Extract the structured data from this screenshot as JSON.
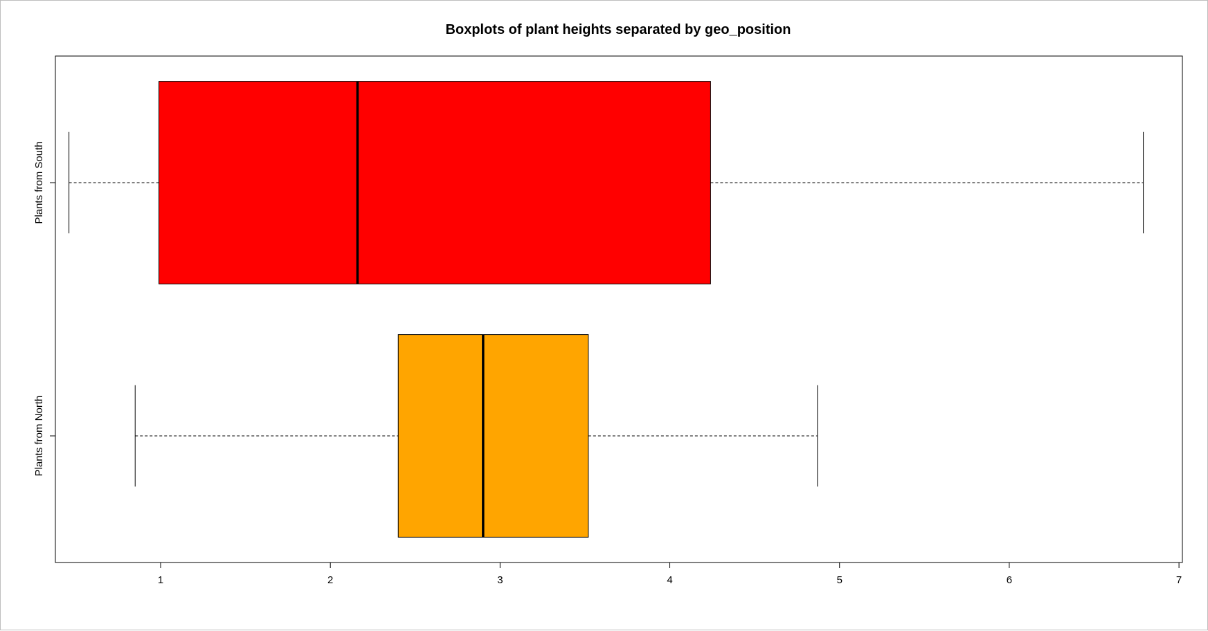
{
  "chart_data": {
    "type": "boxplot",
    "orientation": "horizontal",
    "title": "Boxplots of plant heights separated by geo_position",
    "xlabel": "",
    "ylabel": "",
    "xlim": [
      0.38,
      7.02
    ],
    "x_ticks": [
      1,
      2,
      3,
      4,
      5,
      6,
      7
    ],
    "x_tick_labels": [
      "1",
      "2",
      "3",
      "4",
      "5",
      "6",
      "7"
    ],
    "grid": false,
    "series": [
      {
        "name": "Plants from North",
        "color": "#FFA500",
        "whisker_low": 0.85,
        "q1": 2.4,
        "median": 2.9,
        "q3": 3.52,
        "whisker_high": 4.87
      },
      {
        "name": "Plants from South",
        "color": "#FF0000",
        "whisker_low": 0.46,
        "q1": 0.99,
        "median": 2.16,
        "q3": 4.24,
        "whisker_high": 6.79
      }
    ]
  }
}
